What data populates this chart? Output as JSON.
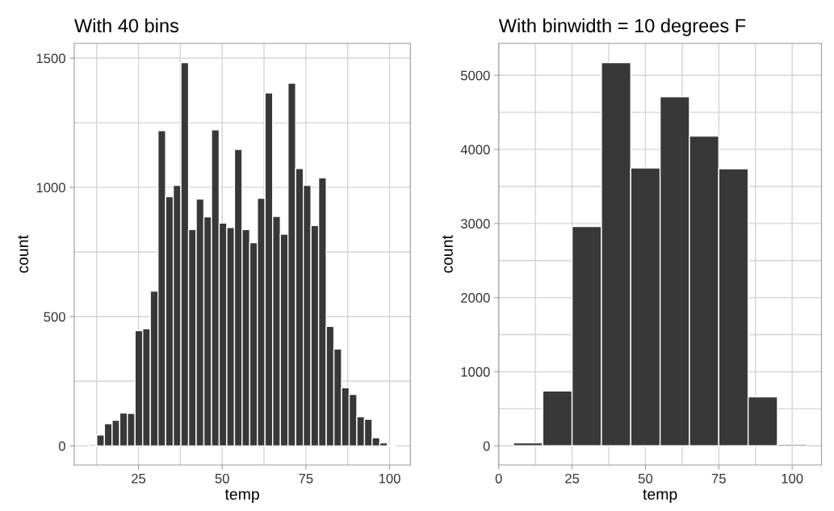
{
  "chart_data": [
    {
      "type": "histogram",
      "title": "With 40 bins",
      "xlabel": "temp",
      "ylabel": "count",
      "color": "#383838",
      "bins": [
        10.25,
        12.54,
        14.82,
        17.11,
        19.39,
        21.68,
        23.96,
        26.25,
        28.53,
        30.82,
        33.1,
        35.39,
        37.67,
        39.96,
        42.24,
        44.53,
        46.81,
        49.1,
        51.38,
        53.67,
        55.95,
        58.24,
        60.52,
        62.81,
        65.09,
        67.38,
        69.66,
        71.95,
        74.23,
        76.52,
        78.8,
        81.09,
        83.37,
        85.66,
        87.94,
        90.23,
        92.51,
        94.8,
        97.08,
        99.37,
        101.65
      ],
      "values": [
        5,
        42,
        86,
        99,
        127,
        126,
        446,
        453,
        599,
        1220,
        964,
        1008,
        1483,
        837,
        955,
        886,
        1223,
        862,
        845,
        1147,
        837,
        786,
        958,
        1366,
        888,
        819,
        1403,
        1073,
        1008,
        853,
        1037,
        462,
        375,
        225,
        199,
        113,
        103,
        31,
        12,
        1
      ],
      "xlim": [
        5.8,
        106.2
      ],
      "ylim": [
        -74,
        1557
      ],
      "xticks": [
        {
          "value": 12.5,
          "label": null
        },
        25,
        {
          "value": 37.5,
          "label": null
        },
        50,
        {
          "value": 62.5,
          "label": null
        },
        75,
        {
          "value": 87.5,
          "label": null
        },
        100
      ],
      "yticks": [
        0,
        {
          "value": 250,
          "label": null
        },
        500,
        {
          "value": 750,
          "label": null
        },
        1000,
        {
          "value": 1250,
          "label": null
        },
        1500
      ],
      "grid": true
    },
    {
      "type": "histogram",
      "title": "With binwidth = 10 degrees F",
      "xlabel": "temp",
      "ylabel": "count",
      "color": "#383838",
      "bins": [
        5,
        15,
        25,
        35,
        45,
        55,
        65,
        75,
        85,
        95,
        105
      ],
      "values": [
        40,
        740,
        2960,
        5170,
        3750,
        4710,
        4180,
        3740,
        660,
        20
      ],
      "xlim": [
        0,
        110
      ],
      "ylim": [
        -259,
        5430
      ],
      "xticks": [
        0,
        {
          "value": 12.5,
          "label": null
        },
        25,
        {
          "value": 37.5,
          "label": null
        },
        50,
        {
          "value": 62.5,
          "label": null
        },
        75,
        {
          "value": 87.5,
          "label": null
        },
        100
      ],
      "yticks": [
        0,
        {
          "value": 500,
          "label": null
        },
        1000,
        {
          "value": 1500,
          "label": null
        },
        2000,
        {
          "value": 2500,
          "label": null
        },
        3000,
        {
          "value": 3500,
          "label": null
        },
        4000,
        {
          "value": 4500,
          "label": null
        },
        5000
      ],
      "grid": true
    }
  ]
}
